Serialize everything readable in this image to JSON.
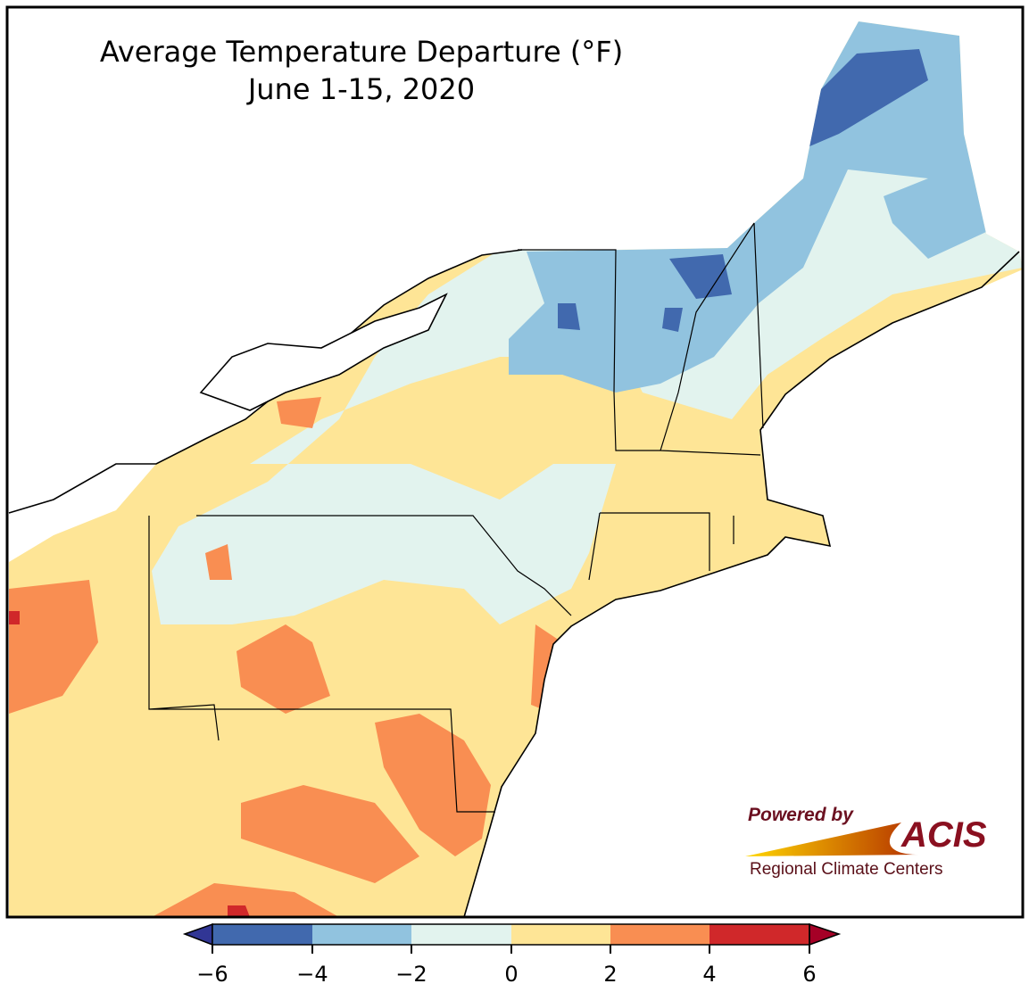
{
  "title": {
    "line1": "Average Temperature Departure (°F)",
    "line2": "June 1-15, 2020"
  },
  "legend": {
    "ticks": [
      "−6",
      "−4",
      "−2",
      "0",
      "2",
      "4",
      "6"
    ],
    "bins": [
      {
        "range": "< -6",
        "color": "#313695"
      },
      {
        "range": "-6 to -4",
        "color": "#4169ae"
      },
      {
        "range": "-4 to -2",
        "color": "#91c3df"
      },
      {
        "range": "-2 to 0",
        "color": "#e2f3ee"
      },
      {
        "range": "0 to 2",
        "color": "#fee596"
      },
      {
        "range": "2 to 4",
        "color": "#f98e52"
      },
      {
        "range": "4 to 6",
        "color": "#d0282a"
      },
      {
        "range": "> 6",
        "color": "#a50026"
      }
    ]
  },
  "logo": {
    "powered": "Powered by",
    "acis": "ACIS",
    "rcc": "Regional Climate Centers"
  }
}
